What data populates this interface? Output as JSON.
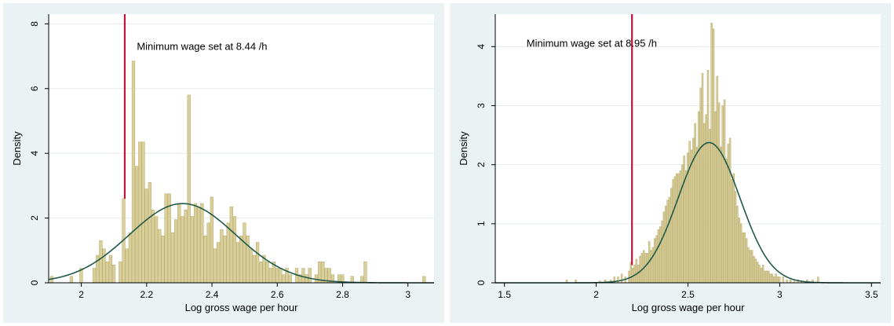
{
  "colors": {
    "panel_bg": "#eaf2f3",
    "plot_bg": "#ffffff",
    "bar_fill": "#d9cf9b",
    "bar_stroke": "#b7aa6a",
    "density_curve": "#1f5a4a",
    "min_wage_line": "#c0143c",
    "grid": "#e5ebec"
  },
  "chart_data": [
    {
      "type": "histogram",
      "xlabel": "Log gross wage per hour",
      "ylabel": "Density",
      "xlim": [
        1.9,
        3.08
      ],
      "ylim": [
        0,
        8.3
      ],
      "xticks": [
        2,
        2.2,
        2.4,
        2.6,
        2.8,
        3
      ],
      "yticks": [
        0,
        2,
        4,
        6,
        8
      ],
      "grid": true,
      "bin_width": 0.01,
      "bins": [
        {
          "x": 1.91,
          "y": 0.2
        },
        {
          "x": 1.97,
          "y": 0.2
        },
        {
          "x": 2.0,
          "y": 0.45
        },
        {
          "x": 2.04,
          "y": 0.45
        },
        {
          "x": 2.05,
          "y": 0.85
        },
        {
          "x": 2.06,
          "y": 1.3
        },
        {
          "x": 2.07,
          "y": 1.05
        },
        {
          "x": 2.08,
          "y": 0.65
        },
        {
          "x": 2.09,
          "y": 0.85
        },
        {
          "x": 2.1,
          "y": 0.55
        },
        {
          "x": 2.12,
          "y": 0.65
        },
        {
          "x": 2.13,
          "y": 2.6
        },
        {
          "x": 2.14,
          "y": 1.05
        },
        {
          "x": 2.15,
          "y": 1.55
        },
        {
          "x": 2.16,
          "y": 6.85
        },
        {
          "x": 2.17,
          "y": 3.6
        },
        {
          "x": 2.18,
          "y": 4.35
        },
        {
          "x": 2.19,
          "y": 4.35
        },
        {
          "x": 2.2,
          "y": 2.9
        },
        {
          "x": 2.21,
          "y": 3.1
        },
        {
          "x": 2.22,
          "y": 2.25
        },
        {
          "x": 2.23,
          "y": 2.05
        },
        {
          "x": 2.24,
          "y": 1.65
        },
        {
          "x": 2.25,
          "y": 1.45
        },
        {
          "x": 2.26,
          "y": 2.75
        },
        {
          "x": 2.27,
          "y": 2.75
        },
        {
          "x": 2.28,
          "y": 1.55
        },
        {
          "x": 2.29,
          "y": 1.95
        },
        {
          "x": 2.3,
          "y": 2.45
        },
        {
          "x": 2.31,
          "y": 2.05
        },
        {
          "x": 2.32,
          "y": 2.25
        },
        {
          "x": 2.33,
          "y": 5.8
        },
        {
          "x": 2.34,
          "y": 2.05
        },
        {
          "x": 2.35,
          "y": 2.45
        },
        {
          "x": 2.36,
          "y": 2.35
        },
        {
          "x": 2.37,
          "y": 2.45
        },
        {
          "x": 2.38,
          "y": 1.45
        },
        {
          "x": 2.39,
          "y": 1.85
        },
        {
          "x": 2.4,
          "y": 2.65
        },
        {
          "x": 2.41,
          "y": 1.05
        },
        {
          "x": 2.42,
          "y": 1.25
        },
        {
          "x": 2.43,
          "y": 1.65
        },
        {
          "x": 2.44,
          "y": 1.45
        },
        {
          "x": 2.45,
          "y": 1.85
        },
        {
          "x": 2.46,
          "y": 2.35
        },
        {
          "x": 2.47,
          "y": 2.05
        },
        {
          "x": 2.48,
          "y": 1.25
        },
        {
          "x": 2.49,
          "y": 1.45
        },
        {
          "x": 2.5,
          "y": 1.85
        },
        {
          "x": 2.51,
          "y": 1.45
        },
        {
          "x": 2.52,
          "y": 1.05
        },
        {
          "x": 2.53,
          "y": 0.85
        },
        {
          "x": 2.54,
          "y": 1.25
        },
        {
          "x": 2.55,
          "y": 0.65
        },
        {
          "x": 2.56,
          "y": 0.85
        },
        {
          "x": 2.57,
          "y": 0.65
        },
        {
          "x": 2.58,
          "y": 0.45
        },
        {
          "x": 2.59,
          "y": 0.65
        },
        {
          "x": 2.6,
          "y": 0.45
        },
        {
          "x": 2.61,
          "y": 0.45
        },
        {
          "x": 2.62,
          "y": 0.25
        },
        {
          "x": 2.63,
          "y": 0.45
        },
        {
          "x": 2.64,
          "y": 0.25
        },
        {
          "x": 2.66,
          "y": 0.45
        },
        {
          "x": 2.67,
          "y": 0.25
        },
        {
          "x": 2.68,
          "y": 0.45
        },
        {
          "x": 2.69,
          "y": 0.25
        },
        {
          "x": 2.7,
          "y": 0.45
        },
        {
          "x": 2.72,
          "y": 0.25
        },
        {
          "x": 2.73,
          "y": 0.65
        },
        {
          "x": 2.74,
          "y": 0.65
        },
        {
          "x": 2.75,
          "y": 0.45
        },
        {
          "x": 2.76,
          "y": 0.45
        },
        {
          "x": 2.77,
          "y": 0.25
        },
        {
          "x": 2.79,
          "y": 0.25
        },
        {
          "x": 2.8,
          "y": 0.25
        },
        {
          "x": 2.83,
          "y": 0.2
        },
        {
          "x": 2.86,
          "y": 0.2
        },
        {
          "x": 2.87,
          "y": 0.65
        },
        {
          "x": 3.05,
          "y": 0.2
        }
      ],
      "normal_fit": {
        "mean": 2.31,
        "sd": 0.163
      },
      "vline": {
        "x": 2.133,
        "y_top": 8.3,
        "y_bottom": 2.6
      },
      "annotation": {
        "text": "Minimum wage set at 8.44 /h",
        "x": 2.17,
        "y": 7.2
      }
    },
    {
      "type": "histogram",
      "xlabel": "Log gross wage per hour",
      "ylabel": "Density",
      "xlim": [
        1.45,
        3.55
      ],
      "ylim": [
        0,
        4.55
      ],
      "xticks": [
        1.5,
        2,
        2.5,
        3,
        3.5
      ],
      "yticks": [
        0,
        1,
        2,
        3,
        4
      ],
      "grid": true,
      "bin_width": 0.01,
      "bins": [
        {
          "x": 1.84,
          "y": 0.05
        },
        {
          "x": 1.89,
          "y": 0.05
        },
        {
          "x": 2.02,
          "y": 0.03
        },
        {
          "x": 2.05,
          "y": 0.05
        },
        {
          "x": 2.08,
          "y": 0.05
        },
        {
          "x": 2.1,
          "y": 0.1
        },
        {
          "x": 2.12,
          "y": 0.1
        },
        {
          "x": 2.14,
          "y": 0.15
        },
        {
          "x": 2.16,
          "y": 0.1
        },
        {
          "x": 2.18,
          "y": 0.2
        },
        {
          "x": 2.19,
          "y": 0.35
        },
        {
          "x": 2.2,
          "y": 0.25
        },
        {
          "x": 2.21,
          "y": 0.3
        },
        {
          "x": 2.22,
          "y": 0.4
        },
        {
          "x": 2.23,
          "y": 0.3
        },
        {
          "x": 2.24,
          "y": 0.45
        },
        {
          "x": 2.25,
          "y": 0.5
        },
        {
          "x": 2.26,
          "y": 0.55
        },
        {
          "x": 2.27,
          "y": 0.5
        },
        {
          "x": 2.28,
          "y": 0.5
        },
        {
          "x": 2.29,
          "y": 0.7
        },
        {
          "x": 2.3,
          "y": 0.55
        },
        {
          "x": 2.31,
          "y": 0.6
        },
        {
          "x": 2.32,
          "y": 0.75
        },
        {
          "x": 2.33,
          "y": 0.8
        },
        {
          "x": 2.34,
          "y": 0.9
        },
        {
          "x": 2.35,
          "y": 0.95
        },
        {
          "x": 2.36,
          "y": 1.05
        },
        {
          "x": 2.37,
          "y": 1.2
        },
        {
          "x": 2.38,
          "y": 1.3
        },
        {
          "x": 2.39,
          "y": 1.4
        },
        {
          "x": 2.4,
          "y": 1.45
        },
        {
          "x": 2.41,
          "y": 1.6
        },
        {
          "x": 2.42,
          "y": 1.75
        },
        {
          "x": 2.43,
          "y": 1.8
        },
        {
          "x": 2.44,
          "y": 1.85
        },
        {
          "x": 2.45,
          "y": 1.85
        },
        {
          "x": 2.46,
          "y": 1.9
        },
        {
          "x": 2.47,
          "y": 2.0
        },
        {
          "x": 2.48,
          "y": 2.15
        },
        {
          "x": 2.49,
          "y": 1.9
        },
        {
          "x": 2.5,
          "y": 2.2
        },
        {
          "x": 2.51,
          "y": 2.4
        },
        {
          "x": 2.52,
          "y": 2.25
        },
        {
          "x": 2.53,
          "y": 2.45
        },
        {
          "x": 2.54,
          "y": 2.7
        },
        {
          "x": 2.55,
          "y": 2.3
        },
        {
          "x": 2.56,
          "y": 2.9
        },
        {
          "x": 2.57,
          "y": 3.3
        },
        {
          "x": 2.58,
          "y": 3.55
        },
        {
          "x": 2.59,
          "y": 2.7
        },
        {
          "x": 2.6,
          "y": 2.85
        },
        {
          "x": 2.61,
          "y": 3.6
        },
        {
          "x": 2.62,
          "y": 2.6
        },
        {
          "x": 2.63,
          "y": 4.4
        },
        {
          "x": 2.64,
          "y": 4.3
        },
        {
          "x": 2.65,
          "y": 2.9
        },
        {
          "x": 2.66,
          "y": 3.5
        },
        {
          "x": 2.67,
          "y": 3.05
        },
        {
          "x": 2.68,
          "y": 2.3
        },
        {
          "x": 2.69,
          "y": 3.0
        },
        {
          "x": 2.7,
          "y": 3.1
        },
        {
          "x": 2.71,
          "y": 2.1
        },
        {
          "x": 2.72,
          "y": 2.35
        },
        {
          "x": 2.73,
          "y": 2.45
        },
        {
          "x": 2.74,
          "y": 1.75
        },
        {
          "x": 2.75,
          "y": 1.85
        },
        {
          "x": 2.76,
          "y": 1.55
        },
        {
          "x": 2.77,
          "y": 1.3
        },
        {
          "x": 2.78,
          "y": 1.1
        },
        {
          "x": 2.79,
          "y": 1.0
        },
        {
          "x": 2.8,
          "y": 0.85
        },
        {
          "x": 2.81,
          "y": 0.85
        },
        {
          "x": 2.82,
          "y": 0.75
        },
        {
          "x": 2.83,
          "y": 0.6
        },
        {
          "x": 2.84,
          "y": 0.55
        },
        {
          "x": 2.85,
          "y": 0.55
        },
        {
          "x": 2.86,
          "y": 0.45
        },
        {
          "x": 2.87,
          "y": 0.4
        },
        {
          "x": 2.88,
          "y": 0.35
        },
        {
          "x": 2.89,
          "y": 0.3
        },
        {
          "x": 2.9,
          "y": 0.25
        },
        {
          "x": 2.91,
          "y": 0.3
        },
        {
          "x": 2.92,
          "y": 0.2
        },
        {
          "x": 2.93,
          "y": 0.2
        },
        {
          "x": 2.94,
          "y": 0.2
        },
        {
          "x": 2.95,
          "y": 0.15
        },
        {
          "x": 2.96,
          "y": 0.15
        },
        {
          "x": 2.97,
          "y": 0.1
        },
        {
          "x": 2.98,
          "y": 0.15
        },
        {
          "x": 2.99,
          "y": 0.1
        },
        {
          "x": 3.0,
          "y": 0.1
        },
        {
          "x": 3.02,
          "y": 0.1
        },
        {
          "x": 3.04,
          "y": 0.05
        },
        {
          "x": 3.06,
          "y": 0.05
        },
        {
          "x": 3.08,
          "y": 0.05
        },
        {
          "x": 3.1,
          "y": 0.05
        },
        {
          "x": 3.12,
          "y": 0.03
        },
        {
          "x": 3.15,
          "y": 0.05
        },
        {
          "x": 3.18,
          "y": 0.05
        },
        {
          "x": 3.21,
          "y": 0.1
        }
      ],
      "normal_fit": {
        "mean": 2.615,
        "sd": 0.168
      },
      "vline": {
        "x": 2.195,
        "y_top": 4.55,
        "y_bottom": 0.3
      },
      "annotation": {
        "text": "Minimum wage set at 8.95 /h",
        "x": 1.62,
        "y": 4.0
      }
    }
  ]
}
